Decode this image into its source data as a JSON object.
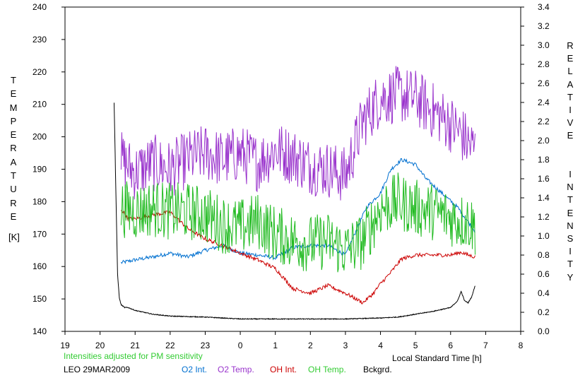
{
  "chart_data": {
    "type": "line",
    "xlabel": "Local Standard Time [h]",
    "x_ticks": [
      "19",
      "20",
      "21",
      "22",
      "23",
      "0",
      "1",
      "2",
      "3",
      "4",
      "5",
      "6",
      "7",
      "8"
    ],
    "x_range_hours": [
      19,
      32
    ],
    "y_left": {
      "label_letters": [
        "T",
        "E",
        "M",
        "P",
        "E",
        "R",
        "A",
        "T",
        "U",
        "R",
        "E"
      ],
      "unit": "[K]",
      "range": [
        140,
        240
      ],
      "ticks": [
        140,
        150,
        160,
        170,
        180,
        190,
        200,
        210,
        220,
        230,
        240
      ]
    },
    "y_right": {
      "label_letters": [
        "R",
        "E",
        "L",
        "A",
        "T",
        "I",
        "V",
        "E",
        "",
        "",
        "I",
        "N",
        "T",
        "E",
        "N",
        "S",
        "I",
        "T",
        "Y"
      ],
      "range": [
        0.0,
        3.4
      ],
      "ticks": [
        "0.0",
        "0.2",
        "0.4",
        "0.6",
        "0.8",
        "1.0",
        "1.2",
        "1.4",
        "1.6",
        "1.8",
        "2.0",
        "2.2",
        "2.4",
        "2.6",
        "2.8",
        "3.0",
        "3.2",
        "3.4"
      ]
    },
    "notes": {
      "adjusted": "Intensities adjusted for PM sensitivity",
      "station": "LEO 29MAR2009"
    },
    "series": [
      {
        "name": "O2 Int.",
        "color": "#0070d0",
        "axis": "right",
        "x": [
          20.6,
          21.0,
          21.5,
          22.0,
          22.5,
          23.0,
          23.5,
          24.0,
          24.5,
          25.0,
          25.5,
          26.0,
          26.5,
          27.0,
          27.3,
          27.6,
          28.0,
          28.3,
          28.6,
          29.0,
          29.3,
          29.6,
          29.9,
          30.2,
          30.5,
          30.7
        ],
        "y": [
          0.72,
          0.75,
          0.78,
          0.82,
          0.78,
          0.85,
          0.9,
          0.82,
          0.8,
          0.77,
          0.88,
          0.9,
          0.9,
          0.8,
          1.05,
          1.3,
          1.45,
          1.7,
          1.8,
          1.75,
          1.6,
          1.5,
          1.4,
          1.3,
          1.15,
          1.05
        ]
      },
      {
        "name": "O2 Temp.",
        "color": "#9933cc",
        "axis": "left",
        "x": [
          20.6,
          21.0,
          21.5,
          22.0,
          22.5,
          23.0,
          23.5,
          24.0,
          24.5,
          25.0,
          25.5,
          26.0,
          26.5,
          27.0,
          27.5,
          28.0,
          28.5,
          29.0,
          29.5,
          30.0,
          30.3,
          30.5,
          30.7
        ],
        "y": [
          193,
          189,
          192,
          190,
          193,
          195,
          193,
          195,
          192,
          196,
          194,
          191,
          190,
          188,
          205,
          212,
          213,
          212,
          208,
          204,
          201,
          198,
          196
        ]
      },
      {
        "name": "OH Int.",
        "color": "#cc0000",
        "axis": "right",
        "x": [
          20.6,
          20.8,
          21.0,
          21.5,
          22.0,
          22.5,
          23.0,
          23.5,
          24.0,
          24.5,
          25.0,
          25.5,
          26.0,
          26.5,
          27.0,
          27.5,
          27.8,
          28.0,
          28.3,
          28.6,
          29.0,
          29.5,
          30.0,
          30.3,
          30.5,
          30.7
        ],
        "y": [
          1.28,
          1.18,
          1.18,
          1.22,
          1.25,
          1.08,
          0.97,
          0.9,
          0.82,
          0.75,
          0.66,
          0.45,
          0.4,
          0.48,
          0.4,
          0.3,
          0.4,
          0.5,
          0.62,
          0.76,
          0.8,
          0.8,
          0.8,
          0.83,
          0.8,
          0.78
        ]
      },
      {
        "name": "OH Temp.",
        "color": "#22bb22",
        "axis": "left",
        "x": [
          20.6,
          21.0,
          21.5,
          22.0,
          22.5,
          23.0,
          23.5,
          24.0,
          24.5,
          25.0,
          25.5,
          26.0,
          26.5,
          27.0,
          27.5,
          28.0,
          28.5,
          29.0,
          29.5,
          30.0,
          30.3,
          30.5,
          30.7
        ],
        "y": [
          178,
          177,
          178,
          177,
          177,
          176,
          173,
          172,
          174,
          170,
          168,
          167,
          168,
          165,
          168,
          178,
          180,
          178,
          177,
          175,
          174,
          174,
          172
        ]
      },
      {
        "name": "Bckgrd.",
        "color": "#000000",
        "axis": "right",
        "x": [
          20.4,
          20.5,
          20.55,
          20.6,
          20.7,
          20.8,
          21.0,
          21.5,
          22.0,
          23.0,
          24.0,
          25.0,
          26.0,
          27.0,
          28.0,
          28.5,
          29.0,
          29.5,
          30.0,
          30.2,
          30.3,
          30.4,
          30.5,
          30.6,
          30.7
        ],
        "y": [
          2.4,
          0.6,
          0.35,
          0.28,
          0.25,
          0.25,
          0.22,
          0.18,
          0.16,
          0.15,
          0.13,
          0.13,
          0.13,
          0.13,
          0.14,
          0.15,
          0.18,
          0.21,
          0.25,
          0.32,
          0.42,
          0.32,
          0.3,
          0.36,
          0.48
        ]
      }
    ]
  }
}
